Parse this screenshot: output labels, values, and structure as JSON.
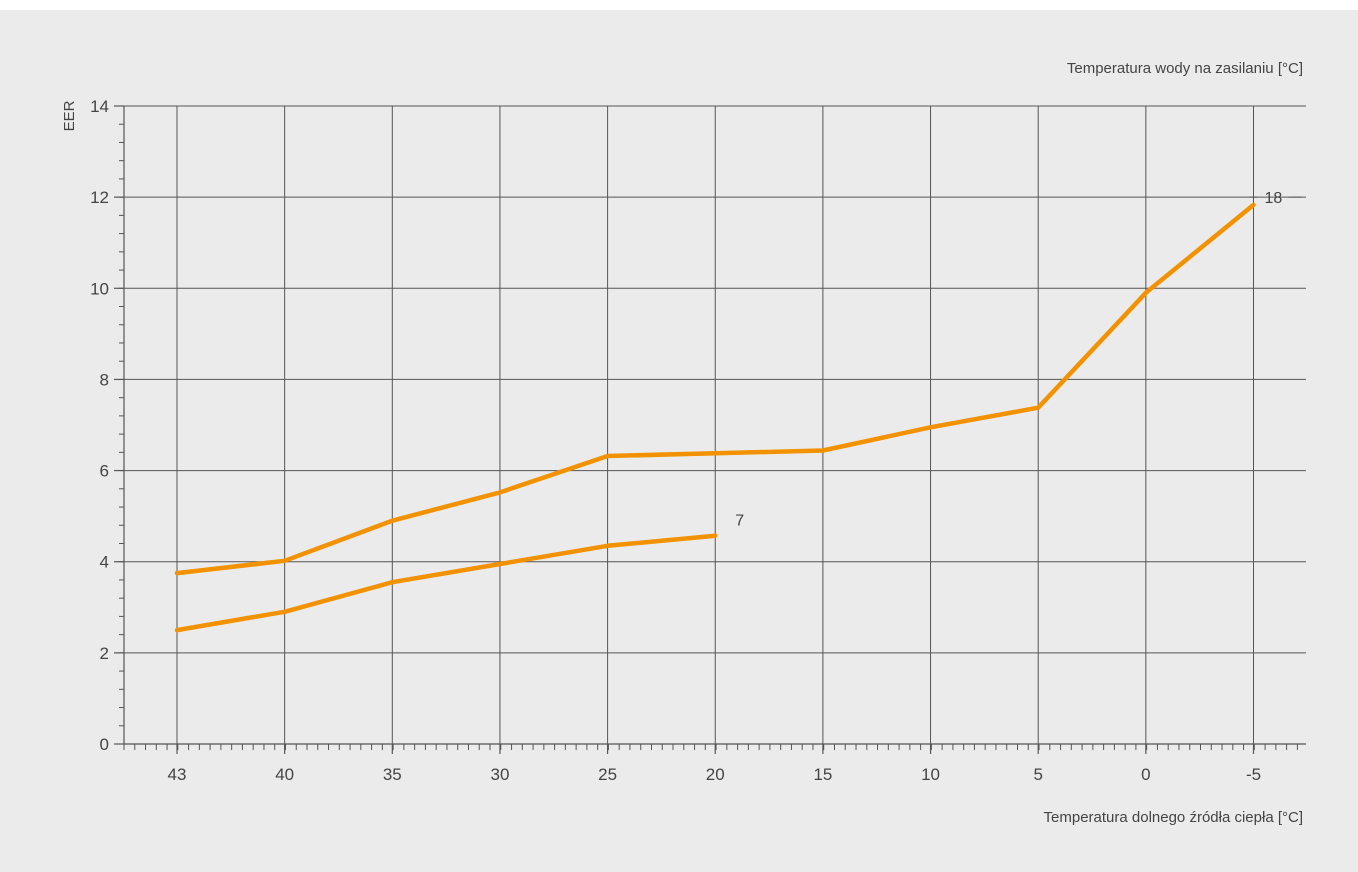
{
  "colors": {
    "panel_background": "#ebebeb",
    "grid": "#555555",
    "axis": "#555555",
    "series_line": "#f39200",
    "text": "#444444"
  },
  "chart_data": {
    "type": "line",
    "title": "",
    "xlabel": "Temperatura dolnego źródła ciepła [°C]",
    "secondary_label": "Temperatura wody na zasilaniu [°C]",
    "ylabel": "EER",
    "x_categories": [
      "43",
      "40",
      "35",
      "30",
      "25",
      "20",
      "15",
      "10",
      "5",
      "0",
      "-5"
    ],
    "ylim": [
      0,
      14
    ],
    "y_ticks": [
      0,
      2,
      4,
      6,
      8,
      10,
      12,
      14
    ],
    "y_minor_step": 0.4,
    "grid": true,
    "legend": "none",
    "series": [
      {
        "name": "7",
        "x": [
          "43",
          "40",
          "35",
          "30",
          "25",
          "20"
        ],
        "values": [
          2.5,
          2.9,
          3.55,
          3.95,
          4.35,
          4.57
        ]
      },
      {
        "name": "18",
        "x": [
          "43",
          "40",
          "35",
          "30",
          "25",
          "20",
          "15",
          "10",
          "5",
          "0",
          "-5"
        ],
        "values": [
          3.75,
          4.02,
          4.9,
          5.52,
          6.32,
          6.38,
          6.44,
          6.95,
          7.38,
          9.9,
          11.83
        ]
      }
    ]
  }
}
